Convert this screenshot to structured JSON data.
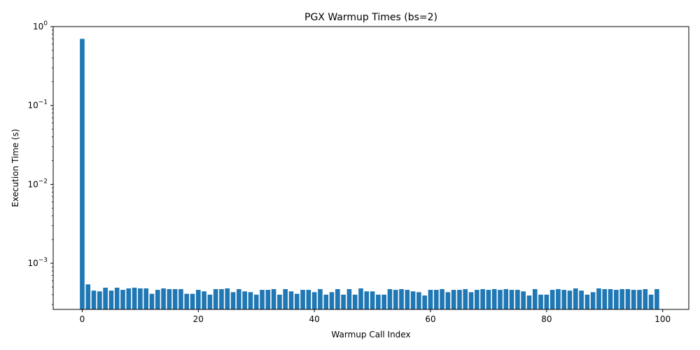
{
  "chart_data": {
    "type": "bar",
    "title": "PGX Warmup Times (bs=2)",
    "xlabel": "Warmup Call Index",
    "ylabel": "Execution Time (s)",
    "yscale": "log",
    "ylim": [
      0.00026,
      1.0
    ],
    "xlim": [
      -5,
      104.5
    ],
    "xticks": [
      0,
      20,
      40,
      60,
      80,
      100
    ],
    "yticks": [
      {
        "value": 0.001,
        "base": "10",
        "exp": "−3"
      },
      {
        "value": 0.01,
        "base": "10",
        "exp": "−2"
      },
      {
        "value": 0.1,
        "base": "10",
        "exp": "−1"
      },
      {
        "value": 1,
        "base": "10",
        "exp": "0"
      }
    ],
    "bar_color": "#1f77b4",
    "x": [
      0,
      1,
      2,
      3,
      4,
      5,
      6,
      7,
      8,
      9,
      10,
      11,
      12,
      13,
      14,
      15,
      16,
      17,
      18,
      19,
      20,
      21,
      22,
      23,
      24,
      25,
      26,
      27,
      28,
      29,
      30,
      31,
      32,
      33,
      34,
      35,
      36,
      37,
      38,
      39,
      40,
      41,
      42,
      43,
      44,
      45,
      46,
      47,
      48,
      49,
      50,
      51,
      52,
      53,
      54,
      55,
      56,
      57,
      58,
      59,
      60,
      61,
      62,
      63,
      64,
      65,
      66,
      67,
      68,
      69,
      70,
      71,
      72,
      73,
      74,
      75,
      76,
      77,
      78,
      79,
      80,
      81,
      82,
      83,
      84,
      85,
      86,
      87,
      88,
      89,
      90,
      91,
      92,
      93,
      94,
      95,
      96,
      97,
      98,
      99
    ],
    "values": [
      0.7,
      0.00054,
      0.00045,
      0.00044,
      0.00049,
      0.00045,
      0.00049,
      0.00046,
      0.00048,
      0.00049,
      0.00048,
      0.00048,
      0.00041,
      0.00046,
      0.00048,
      0.00047,
      0.00047,
      0.00047,
      0.00041,
      0.00041,
      0.00046,
      0.00044,
      0.0004,
      0.00047,
      0.00047,
      0.00048,
      0.00043,
      0.00047,
      0.00044,
      0.00043,
      0.0004,
      0.00046,
      0.00046,
      0.00047,
      0.0004,
      0.00047,
      0.00044,
      0.00041,
      0.00046,
      0.00046,
      0.00043,
      0.00047,
      0.0004,
      0.00043,
      0.00047,
      0.0004,
      0.00047,
      0.0004,
      0.00048,
      0.00044,
      0.00044,
      0.0004,
      0.0004,
      0.00047,
      0.00046,
      0.00047,
      0.00046,
      0.00044,
      0.00043,
      0.00039,
      0.00046,
      0.00046,
      0.00047,
      0.00043,
      0.00046,
      0.00046,
      0.00047,
      0.00043,
      0.00046,
      0.00047,
      0.00046,
      0.00047,
      0.00046,
      0.00047,
      0.00046,
      0.00046,
      0.00044,
      0.00039,
      0.00047,
      0.0004,
      0.0004,
      0.00046,
      0.00047,
      0.00046,
      0.00045,
      0.00048,
      0.00045,
      0.0004,
      0.00043,
      0.00048,
      0.00047,
      0.00047,
      0.00046,
      0.00047,
      0.00047,
      0.00046,
      0.00046,
      0.00047,
      0.0004,
      0.00047
    ]
  }
}
